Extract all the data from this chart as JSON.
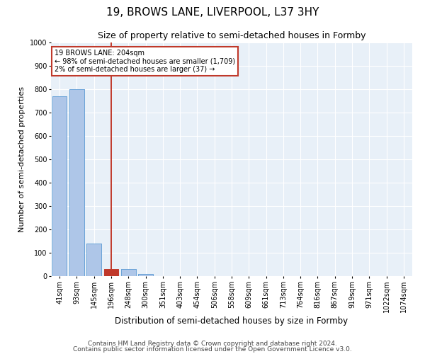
{
  "title": "19, BROWS LANE, LIVERPOOL, L37 3HY",
  "subtitle": "Size of property relative to semi-detached houses in Formby",
  "xlabel": "Distribution of semi-detached houses by size in Formby",
  "ylabel": "Number of semi-detached properties",
  "bar_labels": [
    "41sqm",
    "93sqm",
    "145sqm",
    "196sqm",
    "248sqm",
    "300sqm",
    "351sqm",
    "403sqm",
    "454sqm",
    "506sqm",
    "558sqm",
    "609sqm",
    "661sqm",
    "713sqm",
    "764sqm",
    "816sqm",
    "867sqm",
    "919sqm",
    "971sqm",
    "1022sqm",
    "1074sqm"
  ],
  "bar_values": [
    770,
    800,
    140,
    30,
    30,
    10,
    0,
    0,
    0,
    0,
    0,
    0,
    0,
    0,
    0,
    0,
    0,
    0,
    0,
    0,
    0
  ],
  "bar_color": "#aec6e8",
  "bar_edge_color": "#5b9bd5",
  "highlight_bar_index": 3,
  "highlight_color": "#c0392b",
  "vline_x_index": 3,
  "annotation_text": "19 BROWS LANE: 204sqm\n← 98% of semi-detached houses are smaller (1,709)\n2% of semi-detached houses are larger (37) →",
  "ylim": [
    0,
    1000
  ],
  "yticks": [
    0,
    100,
    200,
    300,
    400,
    500,
    600,
    700,
    800,
    900,
    1000
  ],
  "footer_line1": "Contains HM Land Registry data © Crown copyright and database right 2024.",
  "footer_line2": "Contains public sector information licensed under the Open Government Licence v3.0.",
  "bg_color": "#e8f0f8",
  "grid_color": "#ffffff",
  "title_fontsize": 11,
  "subtitle_fontsize": 9,
  "axis_label_fontsize": 8,
  "tick_fontsize": 7,
  "footer_fontsize": 6.5
}
